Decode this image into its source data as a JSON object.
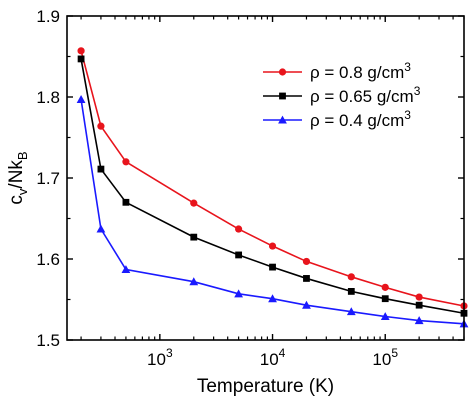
{
  "chart_data": {
    "type": "line",
    "xlabel": "Temperature (K)",
    "ylabel_main": "c",
    "ylabel_sub1": "v",
    "ylabel_mid": "/Nk",
    "ylabel_sub2": "B",
    "x_scale": "log",
    "xlim": [
      150,
      500000
    ],
    "ylim": [
      1.5,
      1.9
    ],
    "y_ticks": [
      "1.5",
      "1.6",
      "1.7",
      "1.8",
      "1.9"
    ],
    "x_ticks": [
      {
        "value": 1000,
        "base": "10",
        "exp": "3"
      },
      {
        "value": 10000,
        "base": "10",
        "exp": "4"
      },
      {
        "value": 100000,
        "base": "10",
        "exp": "5"
      }
    ],
    "grid": false,
    "legend_position": "top-right",
    "series": [
      {
        "name": "ρ = 0.8 g/cm",
        "name_sup": "3",
        "color": "#e8141c",
        "marker": "circle",
        "x": [
          200,
          300,
          500,
          2000,
          5000,
          10000,
          20000,
          50000,
          100000,
          200000,
          500000
        ],
        "y": [
          1.857,
          1.764,
          1.72,
          1.669,
          1.637,
          1.616,
          1.597,
          1.578,
          1.565,
          1.553,
          1.542
        ]
      },
      {
        "name": "ρ = 0.65 g/cm",
        "name_sup": "3",
        "color": "#000000",
        "marker": "square",
        "x": [
          200,
          300,
          500,
          2000,
          5000,
          10000,
          20000,
          50000,
          100000,
          200000,
          500000
        ],
        "y": [
          1.847,
          1.711,
          1.67,
          1.627,
          1.605,
          1.59,
          1.576,
          1.56,
          1.551,
          1.543,
          1.533
        ]
      },
      {
        "name": "ρ = 0.4 g/cm",
        "name_sup": "3",
        "color": "#1a1aff",
        "marker": "triangle",
        "x": [
          200,
          300,
          500,
          2000,
          5000,
          10000,
          20000,
          50000,
          100000,
          200000,
          500000
        ],
        "y": [
          1.797,
          1.637,
          1.587,
          1.572,
          1.557,
          1.551,
          1.543,
          1.535,
          1.529,
          1.524,
          1.52
        ]
      }
    ]
  }
}
